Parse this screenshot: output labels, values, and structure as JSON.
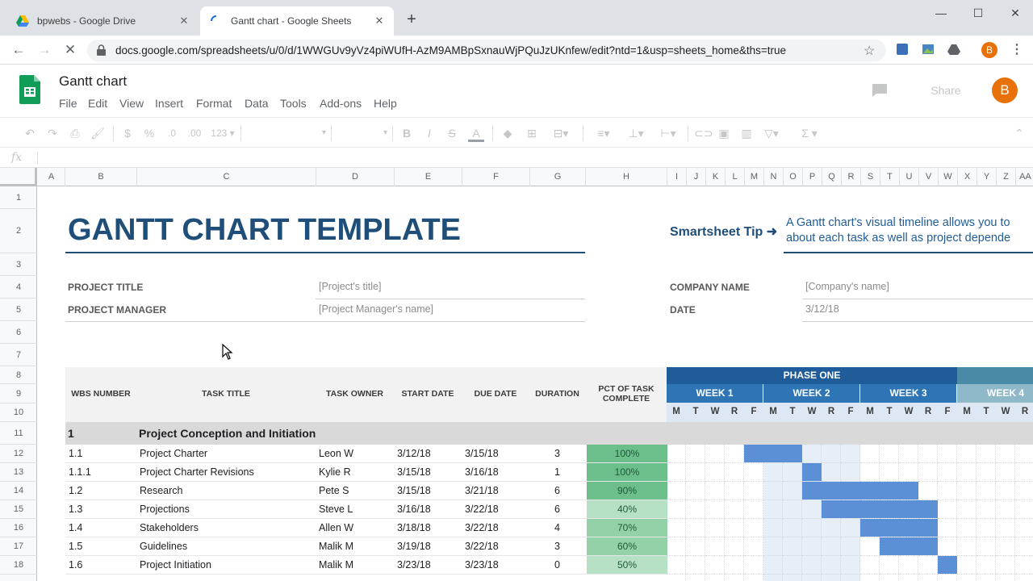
{
  "browser": {
    "tabs": [
      {
        "title": "bpwebs - Google Drive",
        "active": false
      },
      {
        "title": "Gantt chart - Google Sheets",
        "active": true
      }
    ],
    "url": "docs.google.com/spreadsheets/u/0/d/1WWGUv9yVz4piWUfH-AzM9AMBpSxnauWjPQuJzUKnfew/edit?ntd=1&usp=sheets_home&ths=true",
    "profile_initial": "B"
  },
  "sheets": {
    "title": "Gantt chart",
    "menu": [
      "File",
      "Edit",
      "View",
      "Insert",
      "Format",
      "Data",
      "Tools",
      "Add-ons",
      "Help"
    ],
    "share_label": "Share",
    "avatar_initial": "B",
    "toolbar": {
      "currency": "$",
      "percent": "%",
      "dec_less": ".0",
      "dec_more": ".00",
      "number_format": "123",
      "bold": "B",
      "italic": "I",
      "strike": "S",
      "text_color": "A",
      "sum": "Σ"
    },
    "fx": "fx"
  },
  "columns": [
    "A",
    "B",
    "C",
    "D",
    "E",
    "F",
    "G",
    "H",
    "I",
    "J",
    "K",
    "L",
    "M",
    "N",
    "O",
    "P",
    "Q",
    "R",
    "S",
    "T",
    "U",
    "V",
    "W",
    "X",
    "Y",
    "Z",
    "AA"
  ],
  "rows": [
    "1",
    "2",
    "3",
    "4",
    "5",
    "6",
    "7",
    "8",
    "9",
    "10",
    "11",
    "12",
    "13",
    "14",
    "15",
    "16",
    "17",
    "18"
  ],
  "template": {
    "heading": "GANTT CHART TEMPLATE",
    "tip_label": "Smartsheet Tip ➜",
    "tip_text_1": "A Gantt chart's visual timeline allows you to",
    "tip_text_2": "about each task as well as project depende",
    "project_title_label": "PROJECT TITLE",
    "project_title_value": "[Project's title]",
    "project_manager_label": "PROJECT MANAGER",
    "project_manager_value": "[Project Manager's name]",
    "company_label": "COMPANY NAME",
    "company_value": "[Company's name]",
    "date_label": "DATE",
    "date_value": "3/12/18"
  },
  "table": {
    "headers": {
      "wbs": "WBS NUMBER",
      "task": "TASK TITLE",
      "owner": "TASK OWNER",
      "start": "START DATE",
      "due": "DUE DATE",
      "duration": "DURATION",
      "pct": "PCT OF TASK COMPLETE"
    },
    "phase": "PHASE ONE",
    "weeks": [
      "WEEK 1",
      "WEEK 2",
      "WEEK 3",
      "WEEK 4"
    ],
    "days": [
      "M",
      "T",
      "W",
      "R",
      "F",
      "M",
      "T",
      "W",
      "R",
      "F",
      "M",
      "T",
      "W",
      "R",
      "F",
      "M",
      "T",
      "W",
      "R"
    ],
    "section": {
      "wbs": "1",
      "title": "Project Conception and Initiation"
    },
    "tasks": [
      {
        "wbs": "1.1",
        "title": "Project Charter",
        "owner": "Leon W",
        "start": "3/12/18",
        "due": "3/15/18",
        "duration": "3",
        "pct": "100%",
        "bar_start_day": 4,
        "bar_days": 3
      },
      {
        "wbs": "1.1.1",
        "title": "Project Charter Revisions",
        "owner": "Kylie R",
        "start": "3/15/18",
        "due": "3/16/18",
        "duration": "1",
        "pct": "100%",
        "bar_start_day": 7,
        "bar_days": 1
      },
      {
        "wbs": "1.2",
        "title": "Research",
        "owner": "Pete S",
        "start": "3/15/18",
        "due": "3/21/18",
        "duration": "6",
        "pct": "90%",
        "bar_start_day": 7,
        "bar_days": 6
      },
      {
        "wbs": "1.3",
        "title": "Projections",
        "owner": "Steve L",
        "start": "3/16/18",
        "due": "3/22/18",
        "duration": "6",
        "pct": "40%",
        "bar_start_day": 8,
        "bar_days": 6
      },
      {
        "wbs": "1.4",
        "title": "Stakeholders",
        "owner": "Allen W",
        "start": "3/18/18",
        "due": "3/22/18",
        "duration": "4",
        "pct": "70%",
        "bar_start_day": 10,
        "bar_days": 4
      },
      {
        "wbs": "1.5",
        "title": "Guidelines",
        "owner": "Malik M",
        "start": "3/19/18",
        "due": "3/22/18",
        "duration": "3",
        "pct": "60%",
        "bar_start_day": 11,
        "bar_days": 3
      },
      {
        "wbs": "1.6",
        "title": "Project Initiation",
        "owner": "Malik M",
        "start": "3/23/18",
        "due": "3/23/18",
        "duration": "0",
        "pct": "50%",
        "bar_start_day": 14,
        "bar_days": 1
      }
    ]
  },
  "colors": {
    "accent_blue": "#1f4e79",
    "phase_blue": "#1f5c99",
    "week_blue": "#2e75b6",
    "week4_teal": "#8fb8c9",
    "bar_blue": "#5b8fd6",
    "pct_dark": "#6cbf8a",
    "pct_light": "#b7e1c5"
  }
}
